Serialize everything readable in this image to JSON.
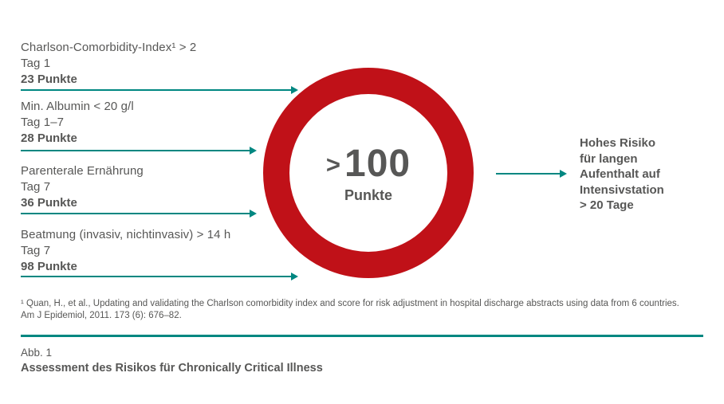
{
  "colors": {
    "teal": "#008781",
    "red": "#c01118",
    "text_gray": "#575756"
  },
  "factors": [
    {
      "criterion": "Charlson-Comorbidity-Index¹ > 2",
      "day": "Tag 1",
      "points": "23 Punkte"
    },
    {
      "criterion": "Min. Albumin < 20 g/l",
      "day": "Tag 1–7",
      "points": "28 Punkte"
    },
    {
      "criterion": "Parenterale Ernährung",
      "day": "Tag 7",
      "points": "36 Punkte"
    },
    {
      "criterion": "Beatmung (invasiv, nichtinvasiv) > 14 h",
      "day": "Tag 7",
      "points": "98 Punkte"
    }
  ],
  "score_circle": {
    "gt": ">",
    "number": "100",
    "unit": "Punkte"
  },
  "outcome": {
    "lines": [
      "Hohes Risiko",
      "für langen",
      "Aufenthalt auf",
      "Intensivstation",
      "> 20 Tage"
    ]
  },
  "footnote": {
    "line1": "¹ Quan, H., et al., Updating and validating the Charlson comorbidity index and score for risk adjustment in hospital discharge abstracts using data from 6 countries.",
    "line2": "Am J Epidemiol, 2011. 173 (6): 676–82."
  },
  "caption": {
    "label": "Abb. 1",
    "title": "Assessment des Risikos für Chronically Critical Illness"
  }
}
